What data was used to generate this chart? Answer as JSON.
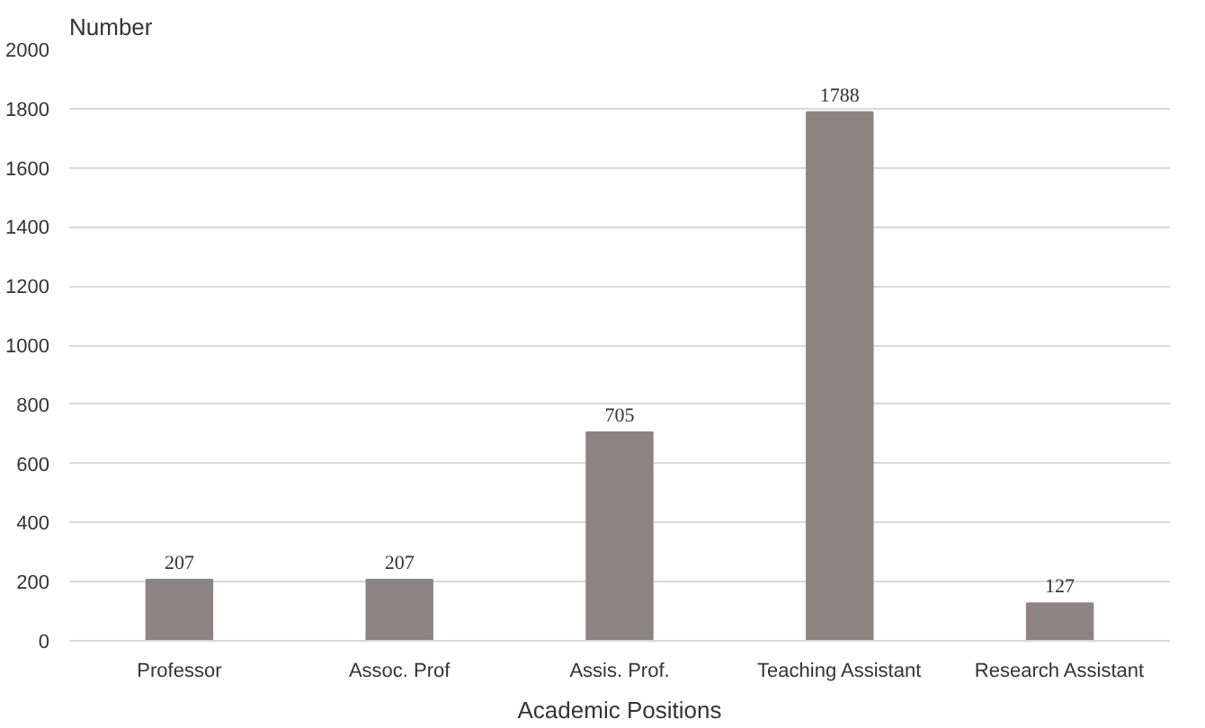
{
  "chart_data": {
    "type": "bar",
    "xlabel": "Academic Positions",
    "ylabel": "Number",
    "categories": [
      "Professor",
      "Assoc. Prof",
      "Assis. Prof.",
      "Teaching Assistant",
      "Research Assistant"
    ],
    "values": [
      207,
      207,
      705,
      1788,
      127
    ],
    "color": "#8c8482",
    "ylim": [
      0,
      2000
    ],
    "yticks": [
      0,
      200,
      400,
      600,
      800,
      1000,
      1200,
      1400,
      1600,
      1800,
      2000
    ],
    "grid": "y",
    "data_labels": true
  }
}
